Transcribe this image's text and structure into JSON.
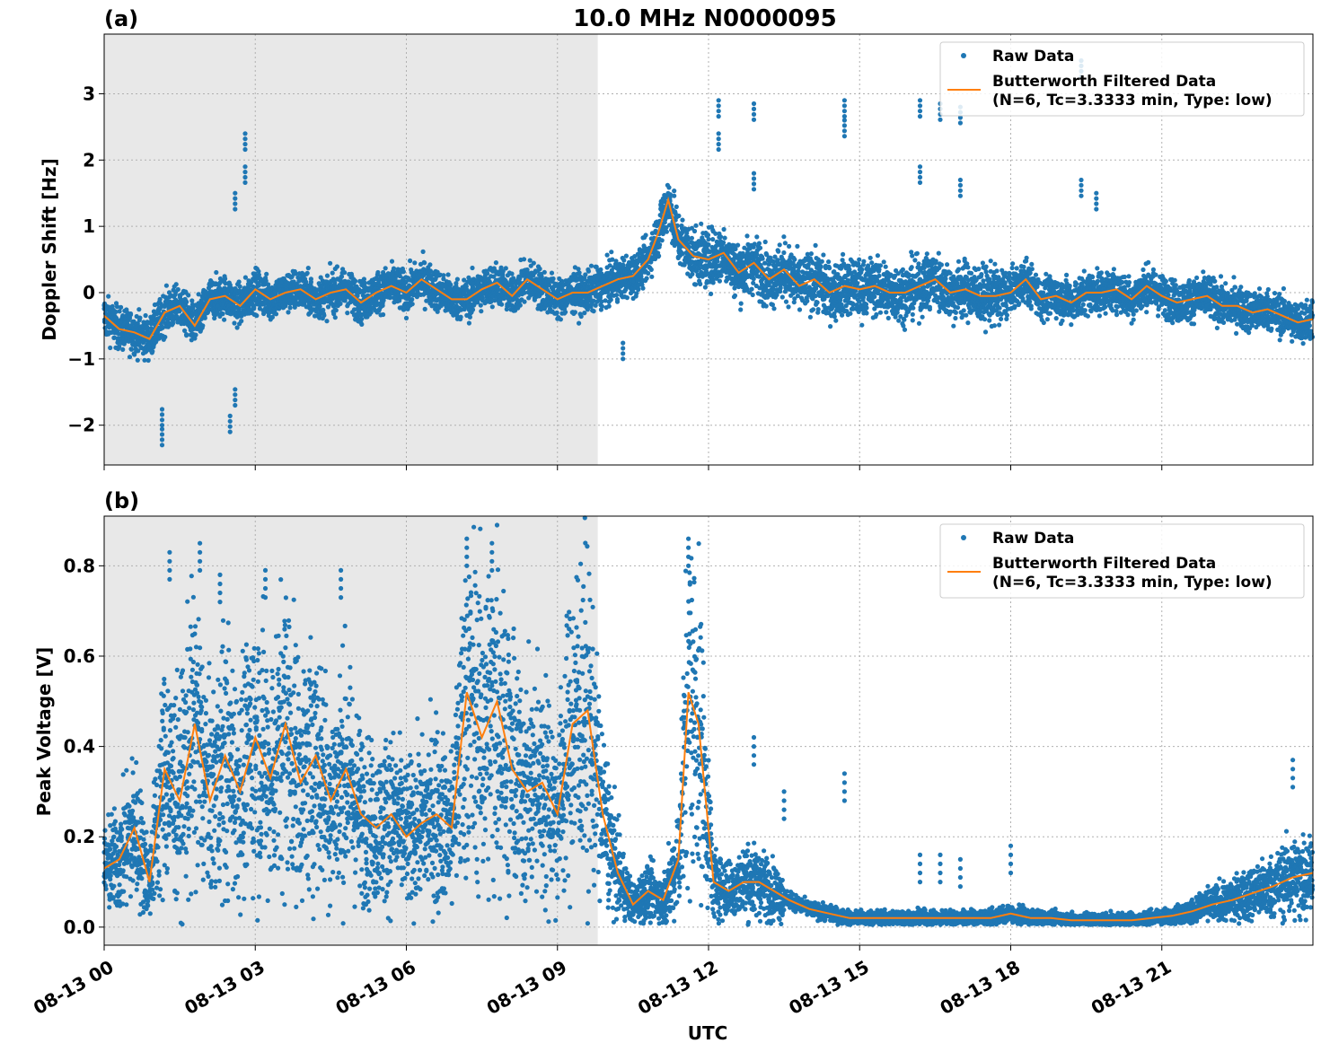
{
  "title": "10.0 MHz N0000095",
  "xlabel": "UTC",
  "x_tick_labels": [
    "08-13 00",
    "08-13 03",
    "08-13 06",
    "08-13 09",
    "08-13 12",
    "08-13 15",
    "08-13 18",
    "08-13 21"
  ],
  "legend": {
    "raw_label": "Raw Data",
    "filtered_label_line1": "Butterworth Filtered Data",
    "filtered_label_line2": "(N=6, Tc=3.3333 min, Type: low)"
  },
  "colors": {
    "raw": "#1f77b4",
    "filtered": "#ff7f0e",
    "night_shade": "#e8e8e8"
  },
  "chart_data": [
    {
      "panel_label": "(a)",
      "type": "scatter",
      "ylabel": "Doppler Shift [Hz]",
      "xlim_hours": [
        0,
        24
      ],
      "ylim": [
        -2.6,
        3.9
      ],
      "yticks": [
        -2,
        -1,
        0,
        1,
        2,
        3
      ],
      "y_tick_labels": [
        "−2",
        "−1",
        "0",
        "1",
        "2",
        "3"
      ],
      "shaded_region_hours": [
        0,
        9.8
      ],
      "grid": true,
      "legend_position": "upper right",
      "series": [
        {
          "name": "Butterworth Filtered Data (N=6, Tc=3.3333 min, Type: low)",
          "x_hours": [
            0,
            0.3,
            0.6,
            0.9,
            1.2,
            1.5,
            1.8,
            2.1,
            2.4,
            2.7,
            3.0,
            3.3,
            3.6,
            3.9,
            4.2,
            4.5,
            4.8,
            5.1,
            5.4,
            5.7,
            6.0,
            6.3,
            6.6,
            6.9,
            7.2,
            7.5,
            7.8,
            8.1,
            8.4,
            8.7,
            9.0,
            9.3,
            9.6,
            9.9,
            10.2,
            10.5,
            10.8,
            11.0,
            11.2,
            11.4,
            11.7,
            12.0,
            12.3,
            12.6,
            12.9,
            13.2,
            13.5,
            13.8,
            14.1,
            14.4,
            14.7,
            15.0,
            15.3,
            15.6,
            15.9,
            16.2,
            16.5,
            16.8,
            17.1,
            17.4,
            17.7,
            18.0,
            18.3,
            18.6,
            18.9,
            19.2,
            19.5,
            19.8,
            20.1,
            20.4,
            20.7,
            21.0,
            21.3,
            21.6,
            21.9,
            22.2,
            22.5,
            22.8,
            23.1,
            23.4,
            23.7,
            24.0
          ],
          "y": [
            -0.35,
            -0.55,
            -0.6,
            -0.7,
            -0.3,
            -0.2,
            -0.5,
            -0.1,
            -0.05,
            -0.2,
            0.05,
            -0.1,
            0.0,
            0.05,
            -0.1,
            0.0,
            0.05,
            -0.15,
            0.0,
            0.1,
            0.0,
            0.2,
            0.05,
            -0.1,
            -0.1,
            0.05,
            0.15,
            -0.05,
            0.2,
            0.05,
            -0.1,
            0.0,
            0.0,
            0.1,
            0.2,
            0.25,
            0.5,
            0.9,
            1.4,
            0.8,
            0.55,
            0.5,
            0.6,
            0.3,
            0.45,
            0.2,
            0.35,
            0.1,
            0.2,
            0.0,
            0.1,
            0.05,
            0.1,
            0.0,
            0.0,
            0.1,
            0.2,
            0.0,
            0.05,
            -0.05,
            -0.05,
            0.0,
            0.2,
            -0.1,
            -0.05,
            -0.15,
            0.0,
            0.0,
            0.05,
            -0.1,
            0.1,
            -0.05,
            -0.15,
            -0.1,
            -0.05,
            -0.2,
            -0.2,
            -0.3,
            -0.25,
            -0.35,
            -0.45,
            -0.4
          ]
        }
      ]
    },
    {
      "panel_label": "(b)",
      "type": "scatter",
      "ylabel": "Peak Voltage [V]",
      "xlim_hours": [
        0,
        24
      ],
      "ylim": [
        -0.04,
        0.91
      ],
      "yticks": [
        0.0,
        0.2,
        0.4,
        0.6,
        0.8
      ],
      "y_tick_labels": [
        "0.0",
        "0.2",
        "0.4",
        "0.6",
        "0.8"
      ],
      "shaded_region_hours": [
        0,
        9.8
      ],
      "grid": true,
      "legend_position": "upper right",
      "series": [
        {
          "name": "Butterworth Filtered Data (N=6, Tc=3.3333 min, Type: low)",
          "x_hours": [
            0,
            0.3,
            0.6,
            0.9,
            1.2,
            1.5,
            1.8,
            2.1,
            2.4,
            2.7,
            3.0,
            3.3,
            3.6,
            3.9,
            4.2,
            4.5,
            4.8,
            5.1,
            5.4,
            5.7,
            6.0,
            6.3,
            6.6,
            6.9,
            7.2,
            7.5,
            7.8,
            8.1,
            8.4,
            8.7,
            9.0,
            9.3,
            9.6,
            9.9,
            10.2,
            10.5,
            10.8,
            11.1,
            11.4,
            11.6,
            11.8,
            12.1,
            12.4,
            12.7,
            13.0,
            13.3,
            13.6,
            14.0,
            14.4,
            14.8,
            15.2,
            15.6,
            16.0,
            16.4,
            16.8,
            17.2,
            17.6,
            18.0,
            18.4,
            18.8,
            19.2,
            19.6,
            20.0,
            20.4,
            20.8,
            21.2,
            21.6,
            22.0,
            22.4,
            22.8,
            23.2,
            23.6,
            24.0
          ],
          "y": [
            0.13,
            0.15,
            0.22,
            0.1,
            0.35,
            0.28,
            0.45,
            0.28,
            0.38,
            0.3,
            0.42,
            0.33,
            0.45,
            0.32,
            0.38,
            0.28,
            0.35,
            0.25,
            0.22,
            0.25,
            0.2,
            0.23,
            0.25,
            0.22,
            0.52,
            0.42,
            0.5,
            0.35,
            0.3,
            0.32,
            0.25,
            0.45,
            0.48,
            0.25,
            0.12,
            0.05,
            0.08,
            0.06,
            0.15,
            0.52,
            0.45,
            0.1,
            0.08,
            0.1,
            0.1,
            0.08,
            0.06,
            0.04,
            0.03,
            0.02,
            0.02,
            0.02,
            0.02,
            0.02,
            0.02,
            0.02,
            0.02,
            0.03,
            0.02,
            0.02,
            0.015,
            0.015,
            0.015,
            0.015,
            0.02,
            0.025,
            0.035,
            0.05,
            0.06,
            0.075,
            0.09,
            0.11,
            0.12
          ]
        }
      ]
    }
  ]
}
